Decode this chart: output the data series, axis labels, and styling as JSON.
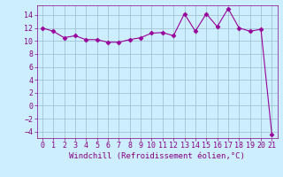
{
  "x": [
    0,
    1,
    2,
    3,
    4,
    5,
    6,
    7,
    8,
    9,
    10,
    11,
    12,
    13,
    14,
    15,
    16,
    17,
    18,
    19,
    20,
    21
  ],
  "y": [
    12,
    11.5,
    10.5,
    10.8,
    10.2,
    10.2,
    9.8,
    9.8,
    10.2,
    10.5,
    11.2,
    11.3,
    10.8,
    14.2,
    11.5,
    14.2,
    12.2,
    15.0,
    12.0,
    11.5,
    11.8,
    -4.5
  ],
  "line_color": "#990099",
  "marker": "D",
  "marker_size": 2.5,
  "bg_color": "#cceeff",
  "grid_color": "#99bbcc",
  "xlabel": "Windchill (Refroidissement éolien,°C)",
  "xlim": [
    -0.5,
    21.5
  ],
  "ylim": [
    -5,
    15.5
  ],
  "yticks": [
    -4,
    -2,
    0,
    2,
    4,
    6,
    8,
    10,
    12,
    14
  ],
  "xticks": [
    0,
    1,
    2,
    3,
    4,
    5,
    6,
    7,
    8,
    9,
    10,
    11,
    12,
    13,
    14,
    15,
    16,
    17,
    18,
    19,
    20,
    21
  ],
  "tick_color": "#880088",
  "label_color": "#880088",
  "label_fontsize": 6.5,
  "tick_fontsize": 6.0,
  "spine_color": "#880088",
  "linewidth": 0.8
}
